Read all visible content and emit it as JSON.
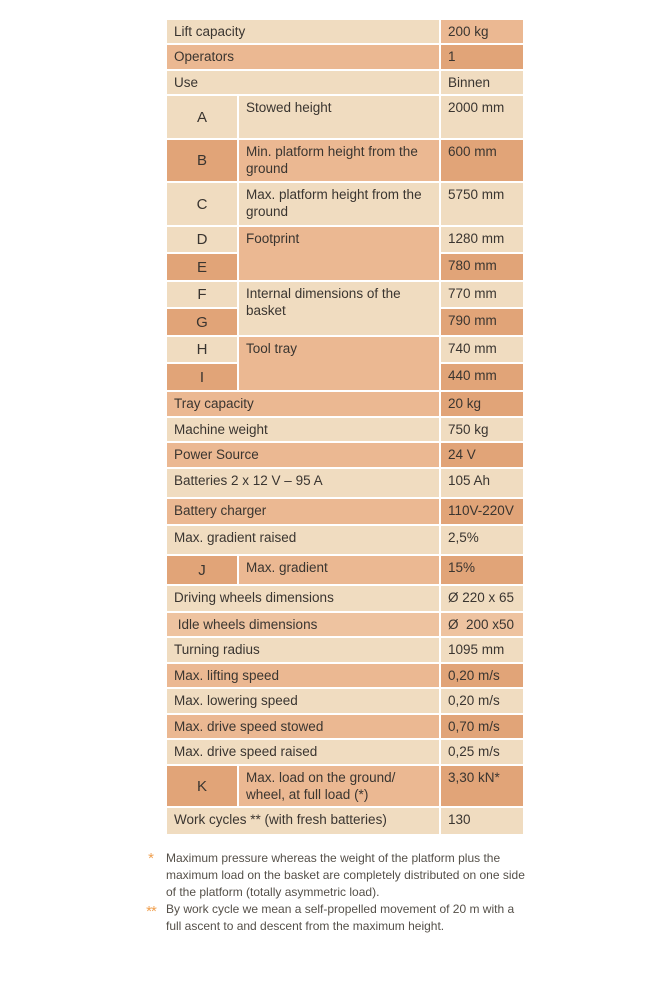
{
  "table": {
    "rows": {
      "lift_capacity": {
        "label": "Lift capacity",
        "value": "200 kg"
      },
      "operators": {
        "label": "Operators",
        "value": "1"
      },
      "use": {
        "label": "Use",
        "value": "Binnen"
      },
      "a": {
        "letter": "A",
        "label": "Stowed height",
        "value": "2000 mm"
      },
      "b": {
        "letter": "B",
        "label": "Min. platform height from the ground",
        "value": "600 mm"
      },
      "c": {
        "letter": "C",
        "label": "Max. platform height from the ground",
        "value": "5750 mm"
      },
      "de": {
        "letter_d": "D",
        "letter_e": "E",
        "label": "Footprint",
        "value_d": "1280 mm",
        "value_e": "780 mm"
      },
      "fg": {
        "letter_f": "F",
        "letter_g": "G",
        "label": "Internal dimensions of the basket",
        "value_f": "770 mm",
        "value_g": "790 mm"
      },
      "hi": {
        "letter_h": "H",
        "letter_i": "I",
        "label": "Tool tray",
        "value_h": "740 mm",
        "value_i": "440 mm"
      },
      "tray_capacity": {
        "label": "Tray capacity",
        "value": "20 kg"
      },
      "machine_weight": {
        "label": "Machine weight",
        "value": "750 kg"
      },
      "power_source": {
        "label": "Power Source",
        "value": "24 V"
      },
      "batteries": {
        "label": "Batteries 2 x 12 V – 95 A",
        "value": "105 Ah"
      },
      "battery_charger": {
        "label": "Battery charger",
        "value": "110V-220V"
      },
      "gradient_raised": {
        "label": "Max. gradient raised",
        "value": "2,5%"
      },
      "j": {
        "letter": "J",
        "label": "Max. gradient",
        "value": "15%"
      },
      "driving_wheels": {
        "label": "Driving wheels dimensions",
        "value": "Ø 220 x 65"
      },
      "idle_wheels": {
        "label": " Idle wheels dimensions",
        "value": "Ø  200 x50"
      },
      "turning_radius": {
        "label": "Turning radius",
        "value": "1095 mm"
      },
      "lifting_speed": {
        "label": "Max. lifting speed",
        "value": "0,20 m/s"
      },
      "lowering_speed": {
        "label": "Max. lowering speed",
        "value": "0,20 m/s"
      },
      "drive_stowed": {
        "label": "Max. drive speed stowed",
        "value": "0,70 m/s"
      },
      "drive_raised": {
        "label": "Max. drive speed raised",
        "value": "0,25 m/s"
      },
      "k": {
        "letter": "K",
        "label": "Max. load on the ground/ wheel, at full load (*)",
        "value": "3,30 kN*"
      },
      "work_cycles": {
        "label": "Work cycles ** (with fresh batteries)",
        "value": "130"
      }
    }
  },
  "footnotes": {
    "single": {
      "mark": "*",
      "text": "Maximum pressure whereas the weight of the platform plus the maximum load on the basket are completely distributed on one side of the platform (totally asymmetric load)."
    },
    "double": {
      "mark": "**",
      "text": "By work cycle we mean a self-propelled movement of 20 m with a full ascent to and descent from the maximum height."
    }
  },
  "colors": {
    "light": "#f0dcc0",
    "mid": "#ebb892",
    "dark": "#e1a478",
    "peach": "#eec3a0",
    "footnote_mark": "#f0a050"
  }
}
